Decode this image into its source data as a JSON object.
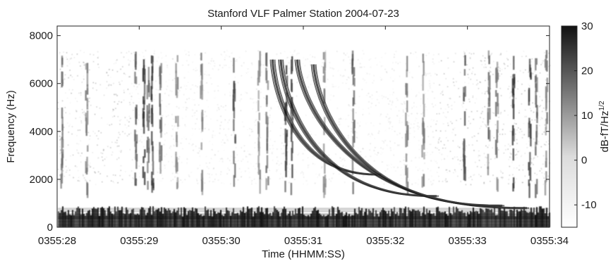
{
  "chart_data": {
    "type": "heatmap",
    "title": "Stanford VLF  Palmer Station  2004-07-23",
    "xlabel": "Time (HHMM:SS)",
    "ylabel": "Frequency (Hz)",
    "x_ticks": [
      "0355:28",
      "0355:29",
      "0355:30",
      "0355:31",
      "0355:32",
      "0355:33",
      "0355:34"
    ],
    "y_ticks": [
      0,
      2000,
      4000,
      6000,
      8000
    ],
    "ylim": [
      0,
      8400
    ],
    "colorbar": {
      "label_base": "dB-fT/Hz",
      "label_exp": "1/2",
      "ticks": [
        30,
        20,
        10,
        0,
        -10
      ],
      "range": [
        -15,
        30
      ],
      "colormap": "gray (white = low, black = high)"
    },
    "features": {
      "low_frequency_band_hz": [
        0,
        800
      ],
      "broadband_emission_hz": [
        1800,
        7400
      ],
      "dispersed_whistlers": [
        {
          "start_s": 2.6,
          "end_s": 3.9,
          "f_top_hz": 7000,
          "f_bottom_hz": 2200
        },
        {
          "start_s": 2.7,
          "end_s": 4.6,
          "f_top_hz": 7000,
          "f_bottom_hz": 1300
        },
        {
          "start_s": 2.9,
          "end_s": 5.7,
          "f_top_hz": 7000,
          "f_bottom_hz": 800
        },
        {
          "start_s": 3.1,
          "end_s": 5.4,
          "f_top_hz": 6800,
          "f_bottom_hz": 900
        }
      ]
    }
  }
}
